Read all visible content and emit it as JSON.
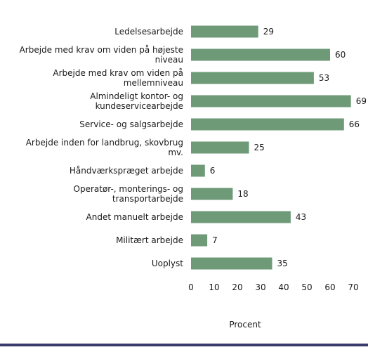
{
  "chart_data": {
    "type": "bar",
    "orientation": "horizontal",
    "categories": [
      [
        "Ledelsesarbejde"
      ],
      [
        "Arbejde med krav om viden på højeste",
        "niveau"
      ],
      [
        "Arbejde med krav om viden på",
        "mellemniveau"
      ],
      [
        "Almindeligt kontor- og",
        "kundeservicearbejde"
      ],
      [
        "Service- og salgsarbejde"
      ],
      [
        "Arbejde inden for landbrug, skovbrug",
        "mv."
      ],
      [
        "Håndværkspræget arbejde"
      ],
      [
        "Operatør-, monterings- og",
        "transportarbejde"
      ],
      [
        "Andet manuelt arbejde"
      ],
      [
        "Militært arbejde"
      ],
      [
        "Uoplyst"
      ]
    ],
    "values": [
      29,
      60,
      53,
      69,
      66,
      25,
      6,
      18,
      43,
      7,
      35
    ],
    "xlabel": "Procent",
    "xlim": [
      0,
      70
    ],
    "xticks": [
      0,
      10,
      20,
      30,
      40,
      50,
      60,
      70
    ],
    "grid": false,
    "legend": "none",
    "bar_color": "#6e9a78",
    "text_color": "#1a1a1a",
    "rule_color": "#3a3a6e"
  }
}
